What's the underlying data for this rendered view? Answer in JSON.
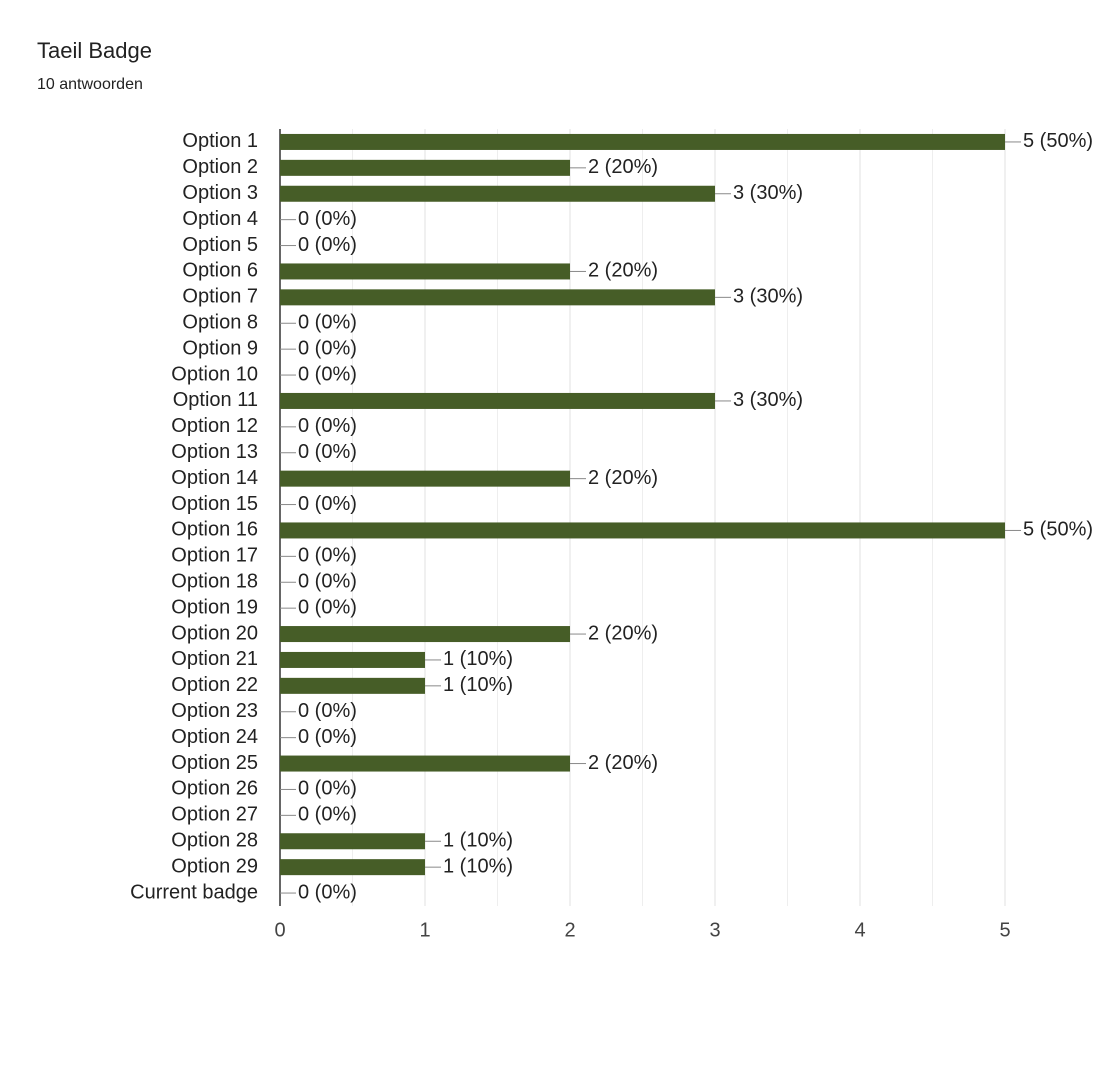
{
  "chart_data": {
    "type": "hbar",
    "title": "Taeil Badge",
    "subtitle": "10 antwoorden",
    "categories": [
      "Option 1",
      "Option 2",
      "Option 3",
      "Option 4",
      "Option 5",
      "Option 6",
      "Option 7",
      "Option 8",
      "Option 9",
      "Option 10",
      "Option 11",
      "Option 12",
      "Option 13",
      "Option 14",
      "Option 15",
      "Option 16",
      "Option 17",
      "Option 18",
      "Option 19",
      "Option 20",
      "Option 21",
      "Option 22",
      "Option 23",
      "Option 24",
      "Option 25",
      "Option 26",
      "Option 27",
      "Option 28",
      "Option 29",
      "Current badge"
    ],
    "values": [
      5,
      2,
      3,
      0,
      0,
      2,
      3,
      0,
      0,
      0,
      3,
      0,
      0,
      2,
      0,
      5,
      0,
      0,
      0,
      2,
      1,
      1,
      0,
      0,
      2,
      0,
      0,
      1,
      1,
      0
    ],
    "value_labels": [
      "5 (50%)",
      "2 (20%)",
      "3 (30%)",
      "0 (0%)",
      "0 (0%)",
      "2 (20%)",
      "3 (30%)",
      "0 (0%)",
      "0 (0%)",
      "0 (0%)",
      "3 (30%)",
      "0 (0%)",
      "0 (0%)",
      "2 (20%)",
      "0 (0%)",
      "5 (50%)",
      "0 (0%)",
      "0 (0%)",
      "0 (0%)",
      "2 (20%)",
      "1 (10%)",
      "1 (10%)",
      "0 (0%)",
      "0 (0%)",
      "2 (20%)",
      "0 (0%)",
      "0 (0%)",
      "1 (10%)",
      "1 (10%)",
      "0 (0%)"
    ],
    "color": "#465d27",
    "xlim": [
      0,
      5
    ],
    "xticks": [
      0,
      1,
      2,
      3,
      4,
      5
    ],
    "minor_gridlines": [
      0.5,
      1.5,
      2.5,
      3.5,
      4.5
    ],
    "grid": true
  }
}
